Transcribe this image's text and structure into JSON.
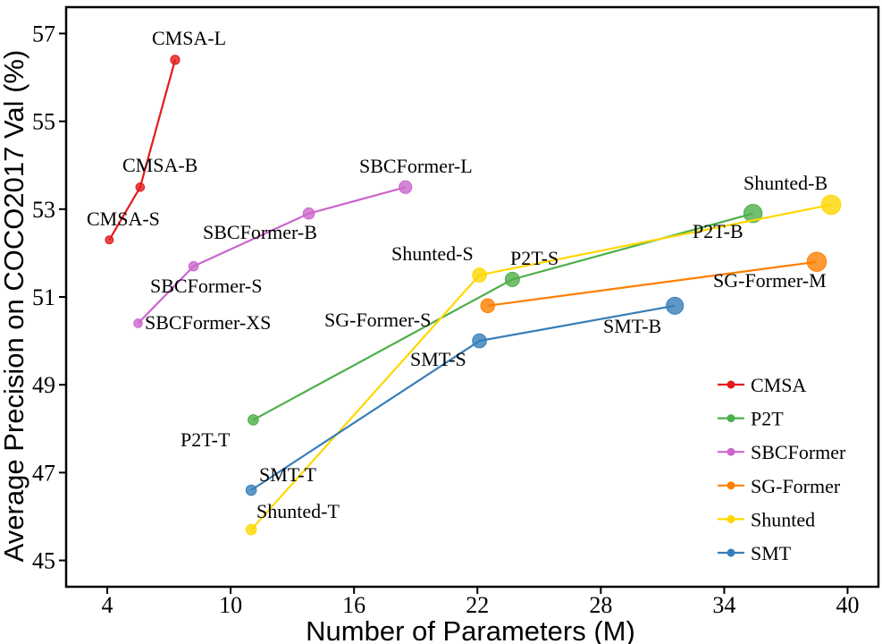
{
  "chart_data": {
    "type": "scatter",
    "xlabel": "Number of Parameters (M)",
    "ylabel": "Average Precision on COCO2017 Val (%)",
    "xlim": [
      2,
      41.5
    ],
    "ylim": [
      44.4,
      57.6
    ],
    "xticks": [
      4,
      10,
      16,
      22,
      28,
      34,
      40
    ],
    "yticks": [
      45,
      47,
      49,
      51,
      53,
      55,
      57
    ],
    "grid": false,
    "legend_position": "bottom-right",
    "series": [
      {
        "name": "CMSA",
        "color": "#e41a1c",
        "points": [
          {
            "x": 4.1,
            "y": 52.3,
            "label": "CMSA-S"
          },
          {
            "x": 5.6,
            "y": 53.5,
            "label": "CMSA-B"
          },
          {
            "x": 7.3,
            "y": 56.4,
            "label": "CMSA-L"
          }
        ]
      },
      {
        "name": "P2T",
        "color": "#4daf4a",
        "points": [
          {
            "x": 11.1,
            "y": 48.2,
            "label": "P2T-T"
          },
          {
            "x": 23.7,
            "y": 51.4,
            "label": "P2T-S"
          },
          {
            "x": 35.4,
            "y": 52.9,
            "label": "P2T-B"
          }
        ]
      },
      {
        "name": "SBCFormer",
        "color": "#cc66cc",
        "points": [
          {
            "x": 5.5,
            "y": 50.4,
            "label": "SBCFormer-XS"
          },
          {
            "x": 8.2,
            "y": 51.7,
            "label": "SBCFormer-S"
          },
          {
            "x": 13.8,
            "y": 52.9,
            "label": "SBCFormer-B"
          },
          {
            "x": 18.5,
            "y": 53.5,
            "label": "SBCFormer-L"
          }
        ]
      },
      {
        "name": "SG-Former",
        "color": "#ff7f00",
        "points": [
          {
            "x": 22.5,
            "y": 50.8,
            "label": "SG-Former-S"
          },
          {
            "x": 38.5,
            "y": 51.8,
            "label": "SG-Former-M"
          }
        ]
      },
      {
        "name": "Shunted",
        "color": "#ffd700",
        "points": [
          {
            "x": 11.0,
            "y": 45.7,
            "label": "Shunted-T"
          },
          {
            "x": 22.1,
            "y": 51.5,
            "label": "Shunted-S"
          },
          {
            "x": 39.2,
            "y": 53.1,
            "label": "Shunted-B"
          }
        ]
      },
      {
        "name": "SMT",
        "color": "#377eb8",
        "points": [
          {
            "x": 11.0,
            "y": 46.6,
            "label": "SMT-T"
          },
          {
            "x": 22.1,
            "y": 50.0,
            "label": "SMT-S"
          },
          {
            "x": 31.6,
            "y": 50.8,
            "label": "SMT-B"
          }
        ]
      }
    ]
  }
}
